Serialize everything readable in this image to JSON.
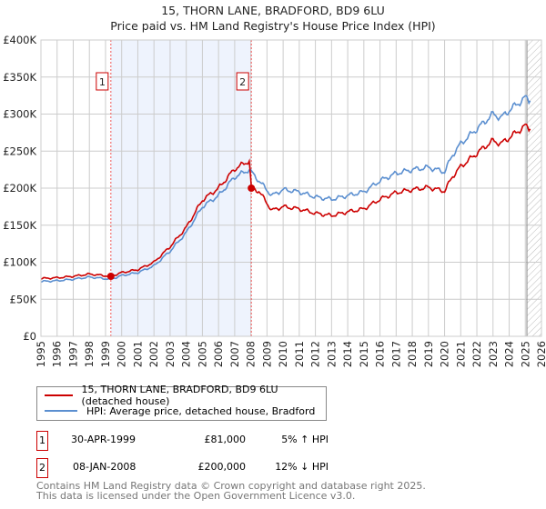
{
  "title_line1": "15, THORN LANE, BRADFORD, BD9 6LU",
  "title_line2": "Price paid vs. HM Land Registry's House Price Index (HPI)",
  "colors": {
    "property": "#cc0000",
    "hpi": "#5b8fd0",
    "shade": "#eef3fd"
  },
  "chart_data": {
    "type": "line",
    "title": "15, THORN LANE, BRADFORD, BD9 6LU - Price paid vs. HM Land Registry's House Price Index (HPI)",
    "xlim": [
      1995,
      2026
    ],
    "ylim": [
      0,
      400000
    ],
    "x_ticks": [
      "1995",
      "1996",
      "1997",
      "1998",
      "1999",
      "2000",
      "2001",
      "2002",
      "2003",
      "2004",
      "2005",
      "2006",
      "2007",
      "2008",
      "2009",
      "2010",
      "2011",
      "2012",
      "2013",
      "2014",
      "2015",
      "2016",
      "2017",
      "2018",
      "2019",
      "2020",
      "2021",
      "2022",
      "2023",
      "2024",
      "2025",
      "2026"
    ],
    "y_ticks": [
      {
        "v": 0,
        "label": "£0"
      },
      {
        "v": 50000,
        "label": "£50K"
      },
      {
        "v": 100000,
        "label": "£100K"
      },
      {
        "v": 150000,
        "label": "£150K"
      },
      {
        "v": 200000,
        "label": "£200K"
      },
      {
        "v": 250000,
        "label": "£250K"
      },
      {
        "v": 300000,
        "label": "£300K"
      },
      {
        "v": 350000,
        "label": "£350K"
      },
      {
        "v": 400000,
        "label": "£400K"
      }
    ],
    "series": [
      {
        "name": "15, THORN LANE, BRADFORD, BD9 6LU (detached house)",
        "color": "#cc0000",
        "x": [
          1995,
          1996,
          1997,
          1998,
          1999.33,
          2000,
          2001,
          2002,
          2003,
          2004,
          2005,
          2006,
          2007,
          2007.9,
          2008.03,
          2008.5,
          2009.3,
          2010,
          2011,
          2012,
          2013,
          2014,
          2015,
          2016,
          2017,
          2018,
          2019,
          2020,
          2020.5,
          2021,
          2022,
          2022.5,
          2023,
          2023.5,
          2024,
          2025,
          2025.3
        ],
        "y": [
          78000,
          79000,
          81000,
          84000,
          81000,
          86000,
          90000,
          100000,
          121000,
          147000,
          184000,
          200000,
          226000,
          237000,
          200000,
          196000,
          170000,
          175000,
          172000,
          166000,
          163000,
          168000,
          172000,
          185000,
          194000,
          198000,
          201000,
          196000,
          216000,
          229000,
          247000,
          256000,
          264000,
          260000,
          268000,
          284000,
          280000
        ]
      },
      {
        "name": "HPI: Average price, detached house, Bradford",
        "color": "#5b8fd0",
        "x": [
          1995,
          1996,
          1997,
          1998,
          1999.33,
          2000,
          2001,
          2002,
          2003,
          2004,
          2005,
          2006,
          2007,
          2007.9,
          2008.5,
          2009.3,
          2010,
          2011,
          2012,
          2013,
          2014,
          2015,
          2016,
          2017,
          2018,
          2019,
          2020,
          2020.5,
          2021,
          2022,
          2022.5,
          2023,
          2023.5,
          2024,
          2025,
          2025.3
        ],
        "y": [
          74000,
          75000,
          77000,
          80000,
          77000,
          82000,
          86000,
          95000,
          115000,
          140000,
          175000,
          190000,
          215000,
          225000,
          210000,
          190000,
          198000,
          195000,
          188000,
          185000,
          190000,
          195000,
          210000,
          220000,
          225000,
          228000,
          222000,
          245000,
          260000,
          280000,
          290000,
          300000,
          295000,
          305000,
          322000,
          318000
        ]
      }
    ],
    "sales": [
      {
        "label": "1",
        "x": 1999.33,
        "y": 81000
      },
      {
        "label": "2",
        "x": 2008.03,
        "y": 200000
      }
    ],
    "hatch_from": 2025.1,
    "legend": "bottom"
  },
  "legend": {
    "property": "15, THORN LANE, BRADFORD, BD9 6LU (detached house)",
    "hpi": "HPI: Average price, detached house, Bradford"
  },
  "sales_table": [
    {
      "num": "1",
      "date": "30-APR-1999",
      "price": "£81,000",
      "hpi": "5% ↑ HPI"
    },
    {
      "num": "2",
      "date": "08-JAN-2008",
      "price": "£200,000",
      "hpi": "12% ↓ HPI"
    }
  ],
  "footer": {
    "line1": "Contains HM Land Registry data © Crown copyright and database right 2025.",
    "line2": "This data is licensed under the Open Government Licence v3.0."
  }
}
